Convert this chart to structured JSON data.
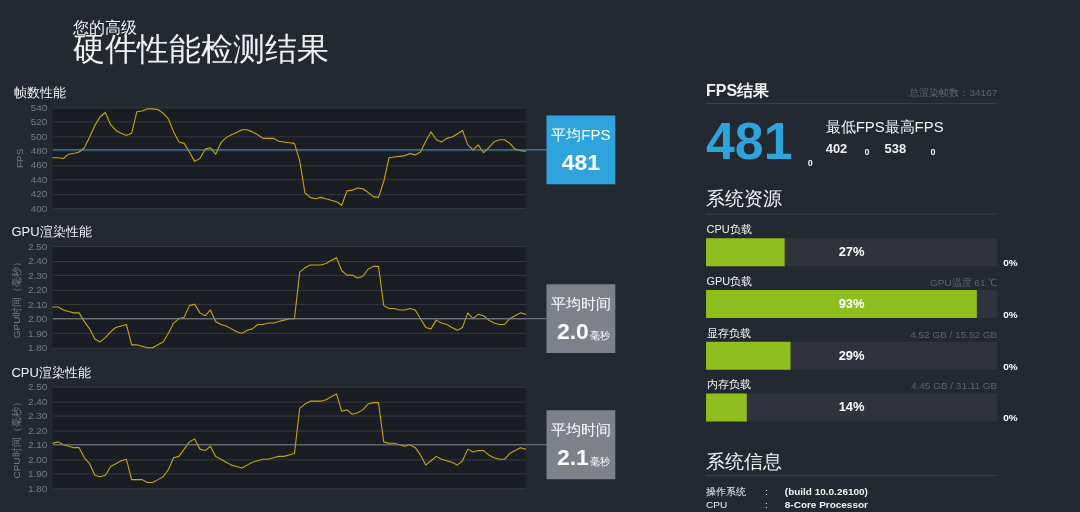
{
  "chart_data": [
    {
      "type": "other",
      "title": "硬件性能检测结果",
      "subtitle": "您的高级"
    },
    {
      "type": "line",
      "title": "帧数性能",
      "ylabel": "FPS",
      "categories": [
        null,
        null,
        null,
        null,
        null,
        null,
        null,
        null,
        null,
        null,
        null,
        null,
        null,
        null,
        null,
        null,
        null,
        null,
        null,
        null,
        null,
        null,
        null,
        null,
        null,
        null,
        null,
        null,
        null,
        null,
        null,
        null,
        null,
        null,
        null,
        null,
        null,
        null,
        null,
        null,
        null,
        null,
        null,
        null,
        null,
        null,
        null,
        null,
        null,
        null,
        null,
        null,
        null,
        null,
        null,
        null,
        null,
        null,
        null,
        null,
        null,
        null,
        null,
        null,
        null,
        null,
        null,
        null,
        null,
        null,
        null,
        null,
        null,
        null,
        null,
        null,
        null,
        null,
        null,
        null,
        null,
        null,
        null,
        null,
        null,
        null,
        null,
        null,
        null,
        null,
        null
      ],
      "values": [
        470,
        470,
        469,
        475,
        476,
        478,
        484,
        499,
        515,
        527,
        533,
        516,
        508,
        504,
        501,
        504,
        534,
        535,
        538,
        538,
        537,
        532,
        524,
        506,
        492,
        490,
        478,
        465,
        469,
        482,
        484,
        475,
        491,
        498,
        502,
        505,
        509,
        509,
        506,
        502,
        497,
        497,
        497,
        493,
        492,
        491,
        490,
        466,
        421,
        415,
        413,
        415,
        413,
        411,
        409,
        404,
        424,
        425,
        428,
        427,
        422,
        416,
        415,
        437,
        470,
        471,
        472,
        473,
        476,
        474,
        478,
        493,
        506,
        495,
        492,
        497,
        499,
        503,
        508,
        488,
        481,
        488,
        477,
        484,
        492,
        495,
        495,
        490,
        482,
        480,
        479
      ],
      "color": "#c9a516",
      "ylim": [
        400,
        540
      ],
      "yticks": [
        400,
        420,
        440,
        460,
        480,
        500,
        520,
        540
      ],
      "grid": "y",
      "tick_labels": "y",
      "ref_lines": [
        {
          "axis": "y",
          "value": 481,
          "label": "平均FPS 481",
          "color": "#2fa3dc"
        }
      ]
    },
    {
      "type": "line",
      "title": "GPU渲染性能",
      "ylabel": "GPU时间（毫秒）",
      "categories": [
        null,
        null,
        null,
        null,
        null,
        null,
        null,
        null,
        null,
        null,
        null,
        null,
        null,
        null,
        null,
        null,
        null,
        null,
        null,
        null,
        null,
        null,
        null,
        null,
        null,
        null,
        null,
        null,
        null,
        null,
        null,
        null,
        null,
        null,
        null,
        null,
        null,
        null,
        null,
        null,
        null,
        null,
        null,
        null,
        null,
        null,
        null,
        null,
        null,
        null,
        null,
        null,
        null,
        null,
        null,
        null,
        null,
        null,
        null,
        null,
        null,
        null,
        null,
        null,
        null,
        null,
        null,
        null,
        null,
        null,
        null,
        null,
        null,
        null,
        null,
        null,
        null,
        null,
        null,
        null,
        null,
        null,
        null,
        null,
        null,
        null,
        null,
        null,
        null,
        null,
        null
      ],
      "values": [
        2.08,
        2.08,
        2.06,
        2.05,
        2.04,
        2.04,
        1.98,
        1.93,
        1.86,
        1.84,
        1.87,
        1.91,
        1.94,
        1.95,
        1.96,
        1.82,
        1.82,
        1.81,
        1.8,
        1.8,
        1.82,
        1.84,
        1.9,
        1.97,
        2.0,
        2.01,
        2.09,
        2.1,
        2.04,
        2.02,
        2.06,
        1.98,
        1.96,
        1.95,
        1.93,
        1.91,
        1.9,
        1.92,
        1.93,
        1.96,
        1.96,
        1.97,
        1.97,
        1.98,
        1.99,
        2.0,
        2.0,
        2.32,
        2.35,
        2.37,
        2.37,
        2.37,
        2.38,
        2.4,
        2.42,
        2.33,
        2.3,
        2.3,
        2.28,
        2.29,
        2.34,
        2.36,
        2.36,
        2.09,
        2.07,
        2.07,
        2.06,
        2.06,
        2.07,
        2.06,
        2.0,
        1.94,
        1.93,
        1.99,
        1.97,
        1.96,
        1.94,
        1.92,
        1.94,
        2.04,
        2.0,
        2.03,
        2.02,
        1.99,
        1.97,
        1.96,
        1.96,
        2.0,
        2.02,
        2.04,
        2.03
      ],
      "color": "#c9a516",
      "ylim": [
        1.8,
        2.5
      ],
      "yticks": [
        {
          "value": 1.8,
          "label": "1.80"
        },
        {
          "value": 1.9,
          "label": "1.90"
        },
        {
          "value": 2.0,
          "label": "2.00"
        },
        {
          "value": 2.1,
          "label": "2.10"
        },
        {
          "value": 2.2,
          "label": "2.20"
        },
        {
          "value": 2.3,
          "label": "2.30"
        },
        {
          "value": 2.4,
          "label": "2.40"
        },
        {
          "value": 2.5,
          "label": "2.50"
        }
      ],
      "grid": "y",
      "tick_labels": "y",
      "ref_lines": [
        {
          "axis": "y",
          "value": 2.0,
          "label": "平均时间 2.0毫秒",
          "color": "#7d8189"
        }
      ]
    },
    {
      "type": "line",
      "title": "CPU渲染性能",
      "ylabel": "CPU时间（毫秒）",
      "categories": [
        null,
        null,
        null,
        null,
        null,
        null,
        null,
        null,
        null,
        null,
        null,
        null,
        null,
        null,
        null,
        null,
        null,
        null,
        null,
        null,
        null,
        null,
        null,
        null,
        null,
        null,
        null,
        null,
        null,
        null,
        null,
        null,
        null,
        null,
        null,
        null,
        null,
        null,
        null,
        null,
        null,
        null,
        null,
        null,
        null,
        null,
        null,
        null,
        null,
        null,
        null,
        null,
        null,
        null,
        null,
        null,
        null,
        null,
        null,
        null,
        null,
        null,
        null,
        null,
        null,
        null,
        null,
        null,
        null,
        null,
        null,
        null,
        null,
        null,
        null,
        null,
        null,
        null,
        null,
        null,
        null,
        null,
        null,
        null,
        null,
        null,
        null,
        null,
        null,
        null,
        null
      ],
      "values": [
        2.11,
        2.12,
        2.1,
        2.09,
        2.08,
        2.08,
        2.01,
        1.97,
        1.89,
        1.88,
        1.89,
        1.95,
        1.97,
        1.99,
        2.0,
        1.86,
        1.86,
        1.86,
        1.84,
        1.84,
        1.86,
        1.88,
        1.93,
        2.01,
        2.02,
        2.07,
        2.12,
        2.14,
        2.07,
        2.06,
        2.09,
        2.02,
        2.0,
        1.98,
        1.96,
        1.95,
        1.94,
        1.96,
        1.98,
        1.99,
        2.0,
        2.0,
        2.01,
        2.02,
        2.02,
        2.03,
        2.04,
        2.35,
        2.38,
        2.4,
        2.4,
        2.4,
        2.41,
        2.43,
        2.45,
        2.33,
        2.34,
        2.31,
        2.32,
        2.34,
        2.38,
        2.39,
        2.39,
        2.12,
        2.11,
        2.11,
        2.1,
        2.09,
        2.1,
        2.08,
        2.03,
        1.96,
        1.99,
        2.02,
        2.0,
        1.99,
        1.98,
        1.96,
        1.99,
        2.07,
        2.05,
        2.06,
        2.06,
        2.03,
        2.01,
        2.0,
        2.0,
        2.04,
        2.06,
        2.08,
        2.07
      ],
      "color": "#c9a516",
      "ylim": [
        1.8,
        2.5
      ],
      "yticks": [
        {
          "value": 1.8,
          "label": "1.80"
        },
        {
          "value": 1.9,
          "label": "1.90"
        },
        {
          "value": 2.0,
          "label": "2.00"
        },
        {
          "value": 2.1,
          "label": "2.10"
        },
        {
          "value": 2.2,
          "label": "2.20"
        },
        {
          "value": 2.3,
          "label": "2.30"
        },
        {
          "value": 2.4,
          "label": "2.40"
        },
        {
          "value": 2.5,
          "label": "2.50"
        }
      ],
      "grid": "y",
      "tick_labels": "y",
      "ref_lines": [
        {
          "axis": "y",
          "value": 2.1,
          "label": "平均时间 2.1毫秒",
          "color": "#7d8189"
        }
      ]
    },
    {
      "type": "other",
      "title": "FPS结果",
      "annotations": [
        "总渲染帧数：34167",
        "481",
        "0",
        "最低FPS",
        "402",
        "0",
        "最高FPS",
        "538",
        "0"
      ]
    },
    {
      "type": "bar",
      "title": "系统资源",
      "orientation": "horizontal",
      "categories": [
        "CPU负载",
        "GPU负载",
        "显存负载",
        "内存负载"
      ],
      "values": [
        27,
        93,
        29,
        14
      ],
      "color": "#8fbe1f",
      "xlim": [
        0,
        100
      ],
      "value_labels": [
        "27%",
        "93%",
        "29%",
        "14%"
      ],
      "tick_labels": "y",
      "annotations": [
        "GPU温度 61 ℃",
        "4.52 GB / 15.52 GB",
        "4.45 GB / 31.11 GB",
        "0%",
        "0%",
        "0%",
        "0%"
      ]
    },
    {
      "type": "other",
      "title": "系统信息",
      "annotations": [
        "操作系统",
        ":",
        "(build 10.0.26100)",
        "CPU",
        ":",
        "8-Core Processor"
      ]
    }
  ]
}
